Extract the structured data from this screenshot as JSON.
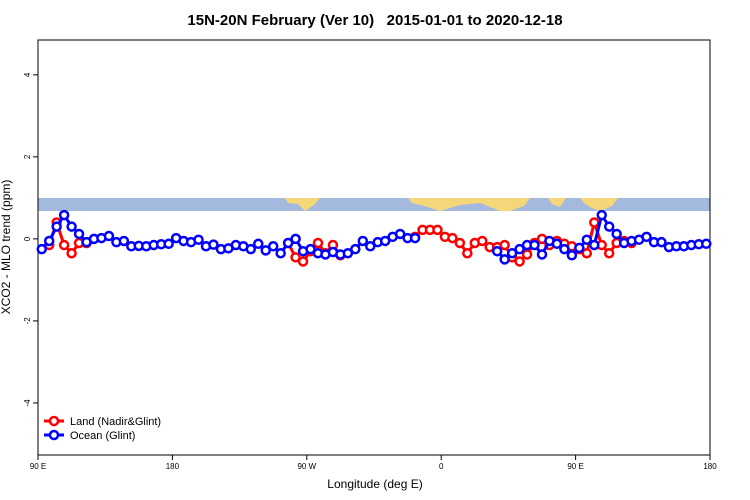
{
  "chart_data": {
    "type": "line",
    "title": "15N-20N February (Ver 10)   2015-01-01 to 2020-12-18",
    "xlabel": "Longitude (deg E)",
    "ylabel": "XCO2 - MLO trend (ppm)",
    "x": [
      92.5,
      97.5,
      102.5,
      107.5,
      112.5,
      117.5,
      122.5,
      127.5,
      132.5,
      137.5,
      142.5,
      147.5,
      152.5,
      157.5,
      162.5,
      167.5,
      172.5,
      177.5,
      182.5,
      187.5,
      192.5,
      197.5,
      202.5,
      207.5,
      212.5,
      217.5,
      222.5,
      227.5,
      232.5,
      237.5,
      242.5,
      247.5,
      252.5,
      257.5,
      262.5,
      267.5,
      272.5,
      277.5,
      282.5,
      287.5,
      292.5,
      297.5,
      302.5,
      307.5,
      312.5,
      317.5,
      322.5,
      327.5,
      332.5,
      337.5,
      342.5,
      347.5,
      352.5,
      357.5,
      362.5,
      367.5,
      372.5,
      377.5,
      382.5,
      387.5,
      392.5,
      397.5,
      402.5,
      407.5,
      412.5,
      417.5,
      422.5,
      427.5,
      432.5,
      437.5,
      442.5,
      447.5,
      452.5,
      457.5,
      462.5,
      467.5,
      472.5,
      477.5,
      482.5,
      487.5,
      492.5,
      497.5,
      502.5,
      507.5,
      512.5,
      517.5,
      522.5,
      527.5,
      532.5,
      537.5
    ],
    "series": [
      {
        "name": "Land (Nadir&Glint)",
        "color": "#ff0000",
        "values": [
          null,
          -0.15,
          0.4,
          -0.15,
          -0.35,
          -0.1,
          -0.1,
          null,
          null,
          null,
          null,
          null,
          null,
          null,
          null,
          null,
          null,
          null,
          null,
          null,
          null,
          null,
          null,
          null,
          null,
          null,
          null,
          null,
          null,
          null,
          null,
          null,
          null,
          -0.1,
          -0.45,
          -0.55,
          -0.3,
          -0.1,
          -0.35,
          -0.15,
          -0.4,
          null,
          null,
          null,
          null,
          null,
          null,
          null,
          null,
          null,
          0.05,
          0.22,
          0.22,
          0.22,
          0.05,
          0.02,
          -0.1,
          -0.35,
          -0.1,
          -0.05,
          -0.2,
          -0.2,
          -0.15,
          -0.45,
          -0.55,
          -0.38,
          -0.1,
          0.0,
          -0.15,
          -0.05,
          -0.12,
          -0.18,
          -0.25,
          -0.35,
          0.4,
          -0.15,
          -0.35,
          -0.1,
          -0.05,
          -0.1,
          null,
          null,
          null,
          null,
          null,
          null,
          null,
          null,
          null,
          null
        ]
      },
      {
        "name": "Ocean (Glint)",
        "color": "#0000ff",
        "values": [
          -0.25,
          -0.05,
          0.3,
          0.58,
          0.3,
          0.12,
          -0.08,
          0.0,
          0.02,
          0.07,
          -0.08,
          -0.05,
          -0.18,
          -0.17,
          -0.18,
          -0.15,
          -0.13,
          -0.12,
          0.02,
          -0.05,
          -0.08,
          -0.02,
          -0.18,
          -0.14,
          -0.25,
          -0.23,
          -0.15,
          -0.18,
          -0.25,
          -0.12,
          -0.28,
          -0.18,
          -0.35,
          -0.1,
          0.0,
          -0.3,
          -0.25,
          -0.35,
          -0.38,
          -0.32,
          -0.38,
          -0.35,
          -0.25,
          -0.05,
          -0.18,
          -0.08,
          -0.05,
          0.05,
          0.12,
          0.02,
          0.02,
          null,
          null,
          null,
          null,
          null,
          null,
          null,
          null,
          null,
          null,
          -0.3,
          -0.5,
          -0.35,
          -0.25,
          -0.15,
          -0.15,
          -0.38,
          -0.05,
          -0.12,
          -0.25,
          -0.4,
          -0.22,
          -0.02,
          -0.15,
          0.58,
          0.3,
          0.12,
          -0.1,
          -0.05,
          -0.02,
          0.05,
          -0.08,
          -0.08,
          -0.2,
          -0.18,
          -0.18,
          -0.15,
          -0.13,
          -0.12
        ]
      }
    ],
    "xlim": [
      90,
      540
    ],
    "xticks": [
      {
        "value": 90,
        "label": "90 E"
      },
      180,
      {
        "value": 270,
        "label": "90 W"
      },
      {
        "value": 360,
        "label": "0"
      },
      {
        "value": 450,
        "label": "90 E"
      },
      {
        "value": 540,
        "label": "180"
      }
    ],
    "ylim": [
      -5.27,
      4.85
    ],
    "yticks": [
      -4,
      -2,
      0,
      2,
      4
    ],
    "grid": false,
    "legend": "bottomleft"
  }
}
